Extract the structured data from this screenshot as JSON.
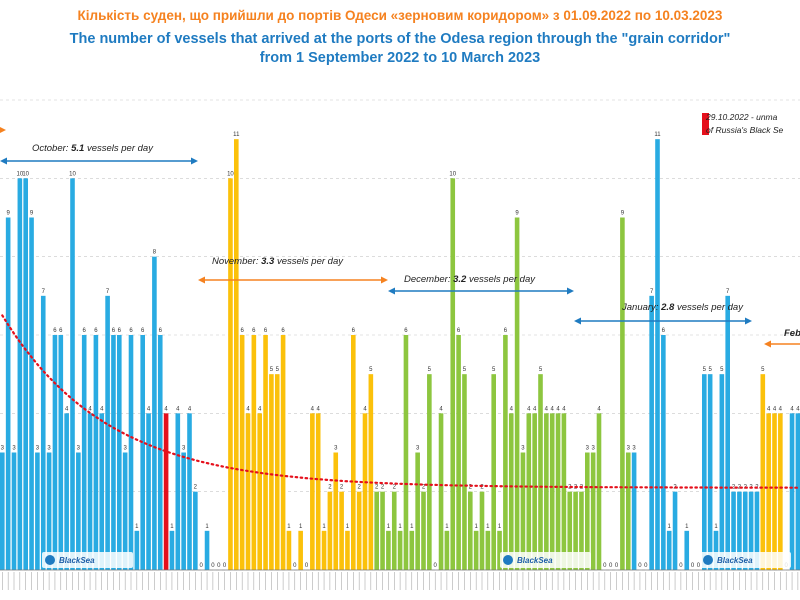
{
  "header": {
    "title_ua": "Кількість суден, що прийшли до  портів Одеси «зерновим коридором» з 01.09.2022 по 10.03.2023",
    "title_en_line1": "The number of vessels that arrived at the ports of the Odesa region through the \"grain corridor\"",
    "title_en_line2": "from 1 September 2022 to 10 March 2023"
  },
  "legend": {
    "note_line1": "29.10.2022 - unma",
    "note_line2": "of Russia's Black Se",
    "note_color": "#e5101c"
  },
  "periods": {
    "october": {
      "name": "October",
      "value": "5.1",
      "unit": "vessels per day"
    },
    "november": {
      "name": "November",
      "value": "3.3",
      "unit": "vessels per day"
    },
    "december": {
      "name": "December",
      "value": "3.2",
      "unit": "vessels per day"
    },
    "january": {
      "name": "January",
      "value": "2.8",
      "unit": "vessels per day"
    },
    "february": {
      "name": "Feb"
    }
  },
  "logos": {
    "text": "BlackSea"
  },
  "colors": {
    "blue": "#29abe2",
    "yellow": "#fbc10b",
    "green": "#8dc63f",
    "red": "#e5101c",
    "arrow_blue": "#1f7bc1",
    "arrow_orange": "#f58220",
    "trend": "#e5101c"
  },
  "chart_data": {
    "type": "bar",
    "title": "The number of vessels that arrived at the ports of the Odesa region through the \"grain corridor\"",
    "ylim": [
      0,
      12
    ],
    "trend": "dotted exponential trend line",
    "series": [
      {
        "name": "daily vessels",
        "values": [
          3,
          9,
          3,
          10,
          10,
          9,
          3,
          7,
          3,
          6,
          6,
          4,
          10,
          3,
          6,
          4,
          6,
          4,
          7,
          6,
          6,
          3,
          6,
          1,
          6,
          4,
          8,
          6,
          4,
          1,
          4,
          3,
          4,
          2,
          0,
          1,
          0,
          0,
          0,
          10,
          11,
          6,
          4,
          6,
          4,
          6,
          5,
          5,
          6,
          1,
          0,
          1,
          0,
          4,
          4,
          1,
          2,
          3,
          2,
          1,
          6,
          2,
          4,
          5,
          2,
          2,
          1,
          2,
          1,
          6,
          1,
          3,
          2,
          5,
          0,
          4,
          1,
          10,
          6,
          5,
          2,
          1,
          2,
          1,
          5,
          1,
          6,
          4,
          9,
          3,
          4,
          4,
          5,
          4,
          4,
          4,
          4,
          2,
          2,
          2,
          3,
          3,
          4,
          0,
          0,
          0,
          9,
          3,
          3,
          0,
          0,
          7,
          11,
          6,
          1,
          2,
          0,
          1,
          0,
          0,
          5,
          5,
          1,
          5,
          7,
          2,
          2,
          2,
          2,
          2,
          5,
          4,
          4,
          4,
          0,
          4,
          4
        ]
      },
      {
        "name": "color groups",
        "values": [
          "blue×36",
          "yellow×28",
          "green×44",
          "blue×22",
          "yellow×5"
        ]
      }
    ],
    "marker": {
      "label": "29.10.2022",
      "index": 28
    },
    "period_averages": [
      {
        "label": "October",
        "value": 5.1
      },
      {
        "label": "November",
        "value": 3.3
      },
      {
        "label": "December",
        "value": 3.2
      },
      {
        "label": "January",
        "value": 2.8
      }
    ]
  }
}
